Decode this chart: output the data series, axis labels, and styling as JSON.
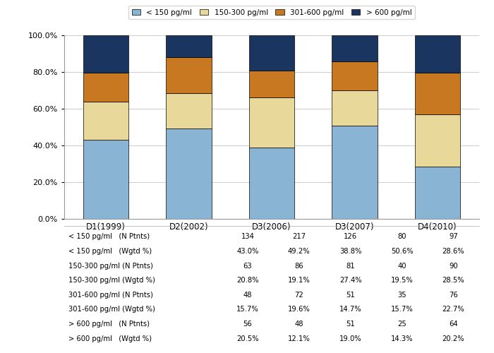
{
  "categories": [
    "D1(1999)",
    "D2(2002)",
    "D3(2006)",
    "D3(2007)",
    "D4(2010)"
  ],
  "series": {
    "< 150 pg/ml": [
      43.0,
      49.2,
      38.8,
      50.6,
      28.6
    ],
    "150-300 pg/ml": [
      20.8,
      19.1,
      27.4,
      19.5,
      28.5
    ],
    "301-600 pg/ml": [
      15.7,
      19.6,
      14.7,
      15.7,
      22.7
    ],
    "> 600 pg/ml": [
      20.5,
      12.1,
      19.0,
      14.3,
      20.2
    ]
  },
  "colors": {
    "< 150 pg/ml": "#8ab4d4",
    "150-300 pg/ml": "#e8d89a",
    "301-600 pg/ml": "#c87820",
    "> 600 pg/ml": "#1a3560"
  },
  "table_row_labels": [
    "< 150 pg/ml   (N Ptnts)",
    "< 150 pg/ml   (Wgtd %)",
    "150-300 pg/ml (N Ptnts)",
    "150-300 pg/ml (Wgtd %)",
    "301-600 pg/ml (N Ptnts)",
    "301-600 pg/ml (Wgtd %)",
    "> 600 pg/ml   (N Ptnts)",
    "> 600 pg/ml   (Wgtd %)"
  ],
  "table_row_values": [
    [
      134,
      217,
      126,
      80,
      97
    ],
    [
      "43.0%",
      "49.2%",
      "38.8%",
      "50.6%",
      "28.6%"
    ],
    [
      63,
      86,
      81,
      40,
      90
    ],
    [
      "20.8%",
      "19.1%",
      "27.4%",
      "19.5%",
      "28.5%"
    ],
    [
      48,
      72,
      51,
      35,
      76
    ],
    [
      "15.7%",
      "19.6%",
      "14.7%",
      "15.7%",
      "22.7%"
    ],
    [
      56,
      48,
      51,
      25,
      64
    ],
    [
      "20.5%",
      "12.1%",
      "19.0%",
      "14.3%",
      "20.2%"
    ]
  ],
  "ylim": [
    0,
    100
  ],
  "yticks": [
    0,
    20,
    40,
    60,
    80,
    100
  ],
  "ytick_labels": [
    "0.0%",
    "20.0%",
    "40.0%",
    "60.0%",
    "80.0%",
    "100.0%"
  ],
  "bar_width": 0.55,
  "background_color": "#ffffff",
  "grid_color": "#cccccc",
  "legend_order": [
    "< 150 pg/ml",
    "150-300 pg/ml",
    "301-600 pg/ml",
    "> 600 pg/ml"
  ]
}
